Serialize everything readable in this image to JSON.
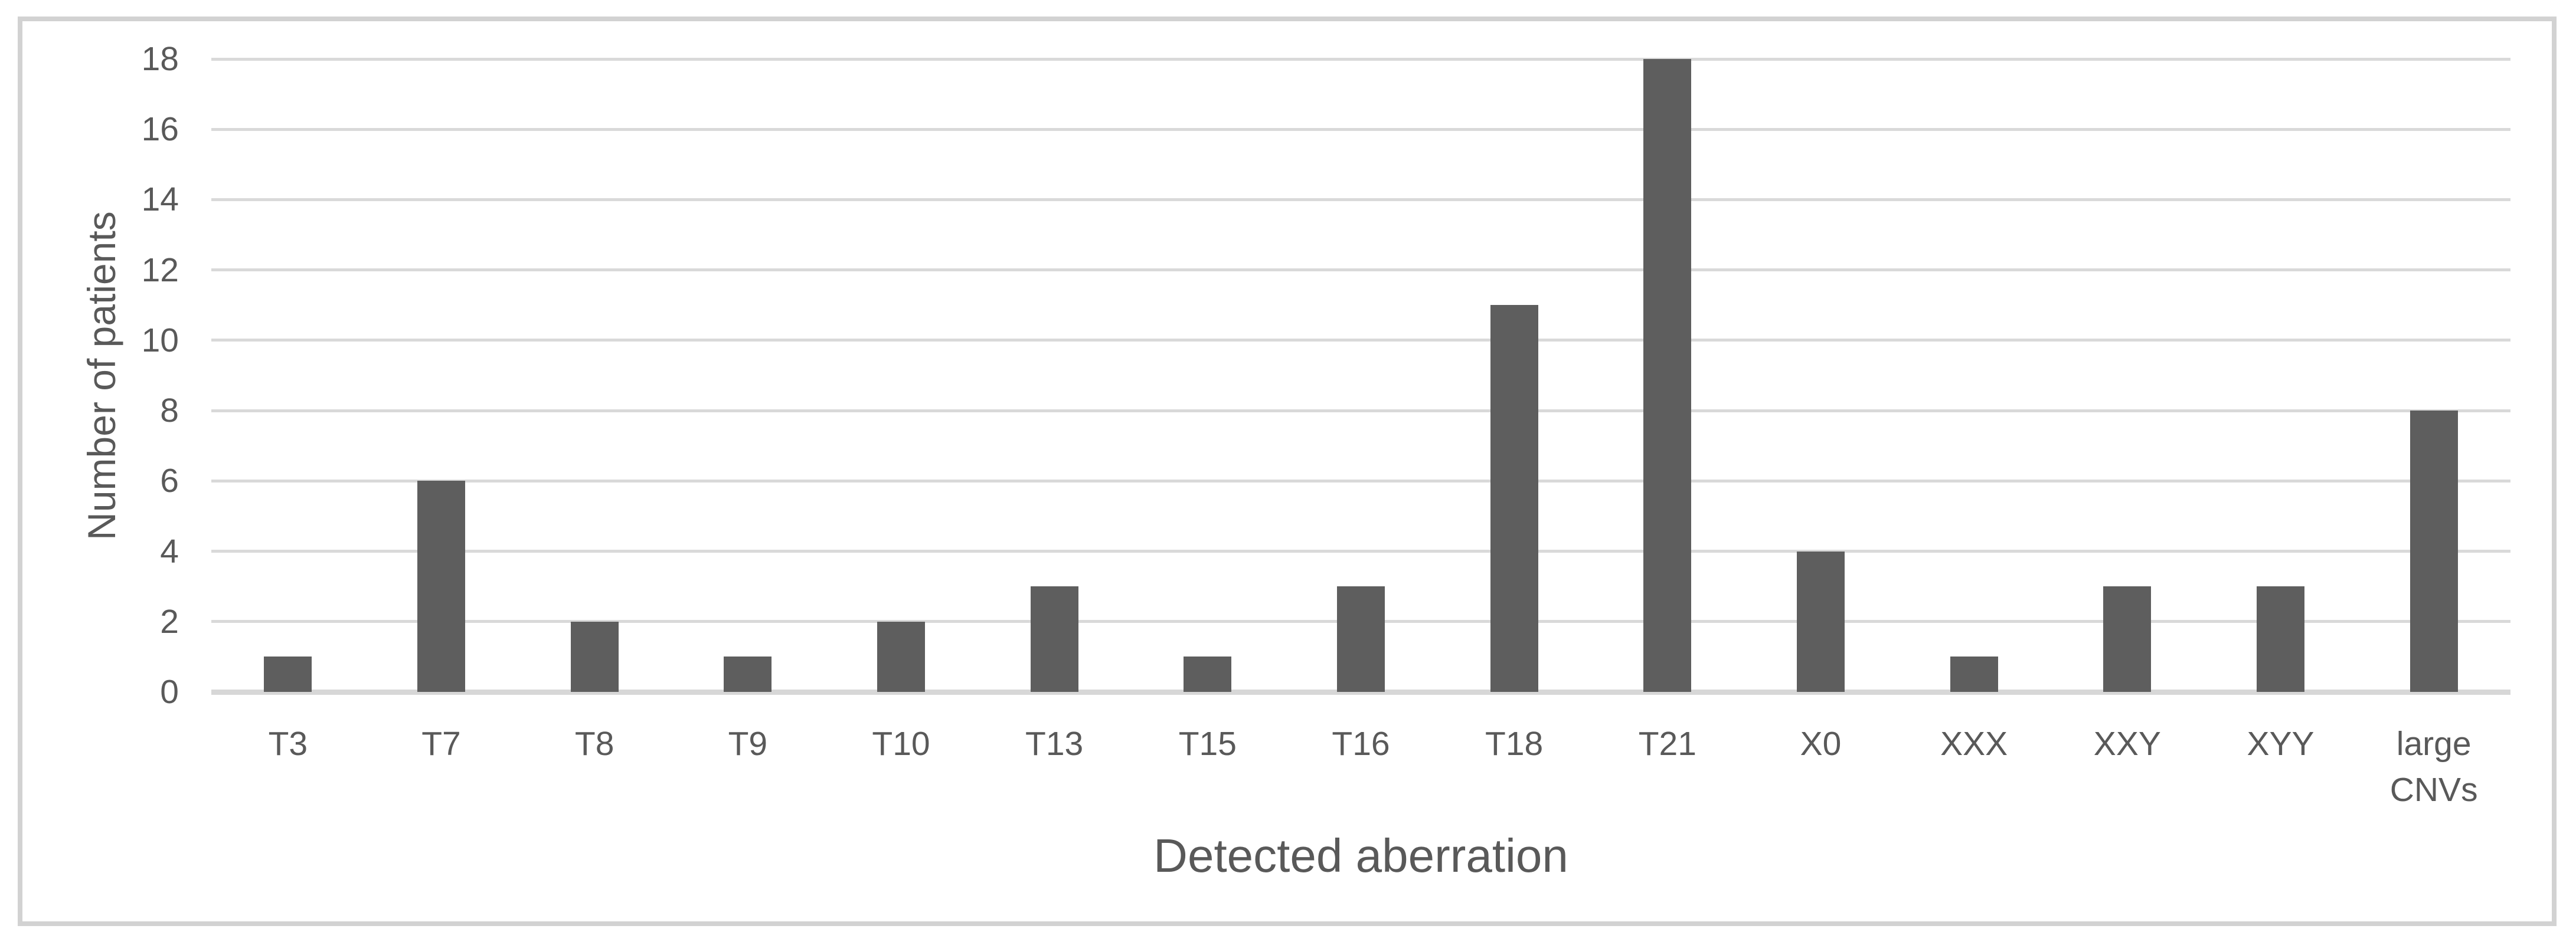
{
  "chart_data": {
    "type": "bar",
    "categories": [
      "T3",
      "T7",
      "T8",
      "T9",
      "T10",
      "T13",
      "T15",
      "T16",
      "T18",
      "T21",
      "X0",
      "XXX",
      "XXY",
      "XYY",
      "large CNVs"
    ],
    "values": [
      1,
      6,
      2,
      1,
      2,
      3,
      1,
      3,
      11,
      18,
      4,
      1,
      3,
      3,
      8
    ],
    "title": "",
    "xlabel": "Detected aberration",
    "ylabel": "Number of patients",
    "ylim": [
      0,
      18
    ],
    "yticks": [
      0,
      2,
      4,
      6,
      8,
      10,
      12,
      14,
      16,
      18
    ],
    "grid": true,
    "legend_position": "none",
    "colors": {
      "bar": "#5e5e5e",
      "gridline": "#d9d9d9",
      "axis_line": "#d7d7d7",
      "text": "#595959",
      "frame_border": "#d2d2d2",
      "background": "#ffffff"
    }
  }
}
